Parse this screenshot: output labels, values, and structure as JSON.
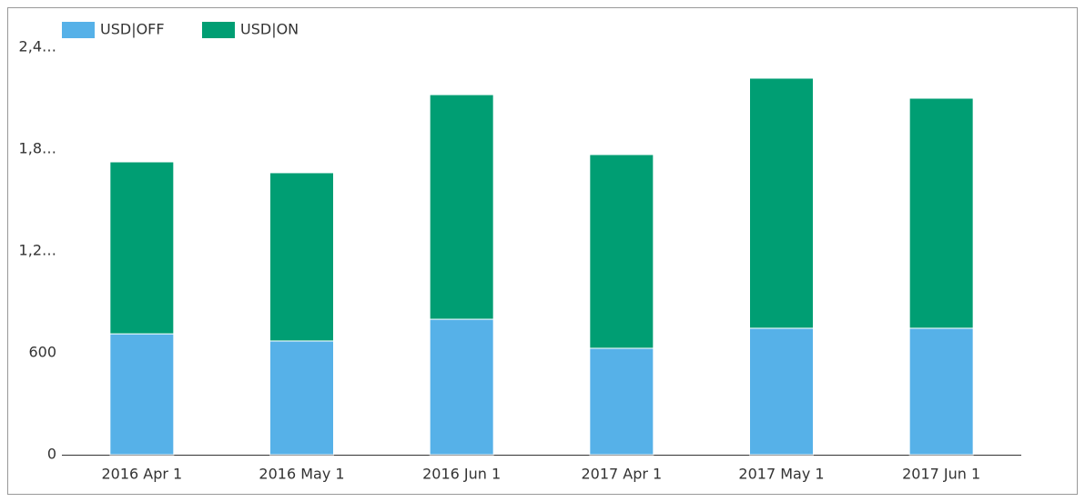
{
  "chart_data": {
    "type": "stacked-bar",
    "categories": [
      "2016 Apr 1",
      "2016 May 1",
      "2016 Jun 1",
      "2017 Apr 1",
      "2017 May 1",
      "2017 Jun 1"
    ],
    "series": [
      {
        "name": "USD|OFF",
        "color": "#56b1e8",
        "values": [
          712,
          670,
          798,
          627,
          745,
          745
        ]
      },
      {
        "name": "USD|ON",
        "color": "#009e73",
        "values": [
          1013,
          991,
          1323,
          1141,
          1473,
          1355
        ]
      }
    ],
    "ylim": [
      0,
      2400
    ],
    "yticks": [
      0,
      600,
      {
        "value": 1200,
        "label": "1,2…"
      },
      {
        "value": 1800,
        "label": "1,8…"
      },
      {
        "value": 2400,
        "label": "2,4…"
      }
    ],
    "legend": "top-left"
  }
}
